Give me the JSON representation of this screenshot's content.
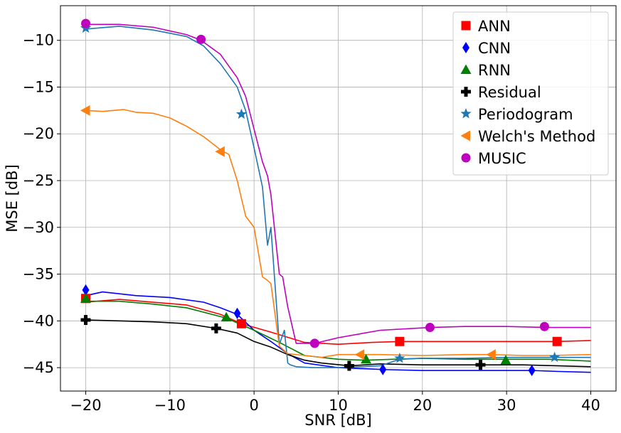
{
  "chart_data": {
    "type": "line",
    "xlabel": "SNR [dB]",
    "ylabel": "MSE [dB]",
    "xlim": [
      -23,
      43
    ],
    "ylim": [
      -47.5,
      -6.3
    ],
    "xticks": [
      -20,
      -10,
      0,
      10,
      20,
      30,
      40
    ],
    "yticks": [
      -45,
      -40,
      -35,
      -30,
      -25,
      -20,
      -15,
      -10
    ],
    "xtick_labels": [
      "−20",
      "−10",
      "0",
      "10",
      "20",
      "30",
      "40"
    ],
    "ytick_labels": [
      "−45",
      "−40",
      "−35",
      "−30",
      "−25",
      "−20",
      "−15",
      "−10"
    ],
    "grid": true,
    "legend_position": "top-right",
    "series": [
      {
        "name": "ANN",
        "color": "#ff0000",
        "marker": "square",
        "x": [
          -20,
          -16,
          -12,
          -8,
          -4,
          -1.5,
          2,
          6,
          10,
          14,
          17.3,
          22,
          26,
          30,
          36,
          40
        ],
        "y": [
          -38.0,
          -37.7,
          -38.0,
          -38.3,
          -39.3,
          -40.3,
          -41.2,
          -42.3,
          -42.5,
          -42.3,
          -42.2,
          -42.2,
          -42.2,
          -42.2,
          -42.2,
          -42.1
        ],
        "markers_x": [
          -20,
          -1.5,
          17.3,
          36
        ],
        "markers_y": [
          -37.6,
          -40.3,
          -42.2,
          -42.2
        ]
      },
      {
        "name": "CNN",
        "color": "#0000ff",
        "marker": "thin_diamond",
        "x": [
          -20,
          -18,
          -16,
          -14,
          -10,
          -6,
          -4,
          -2,
          0,
          2,
          4,
          6,
          10,
          15.3,
          20,
          25,
          30,
          33,
          36,
          40
        ],
        "y": [
          -37.3,
          -36.9,
          -37.1,
          -37.3,
          -37.5,
          -38.0,
          -38.6,
          -39.3,
          -41.0,
          -42.2,
          -43.5,
          -44.5,
          -45.0,
          -45.2,
          -45.3,
          -45.3,
          -45.3,
          -45.3,
          -45.4,
          -45.5
        ],
        "markers_x": [
          -20,
          -2,
          15.3,
          33
        ],
        "markers_y": [
          -36.7,
          -39.2,
          -45.2,
          -45.3
        ]
      },
      {
        "name": "RNN",
        "color": "#008000",
        "marker": "triangle_up",
        "x": [
          -20,
          -16,
          -12,
          -8,
          -3.3,
          0,
          3,
          6,
          10,
          13.3,
          20,
          25,
          29.9,
          35,
          40
        ],
        "y": [
          -37.9,
          -37.9,
          -38.2,
          -38.6,
          -39.7,
          -41.0,
          -42.3,
          -43.7,
          -44.1,
          -44.2,
          -44.0,
          -44.1,
          -44.1,
          -44.1,
          -44.3
        ],
        "markers_x": [
          -20,
          -3.3,
          13.3,
          29.9
        ],
        "markers_y": [
          -37.6,
          -39.6,
          -44.1,
          -44.2
        ]
      },
      {
        "name": "Residual",
        "color": "#000000",
        "marker": "plus_filled",
        "x": [
          -20,
          -16,
          -12,
          -8,
          -4.5,
          -2,
          0,
          2,
          4,
          6,
          8,
          11.3,
          15,
          20,
          26.9,
          32,
          36,
          40
        ],
        "y": [
          -39.9,
          -40.0,
          -40.1,
          -40.3,
          -40.8,
          -41.3,
          -42.2,
          -42.8,
          -43.6,
          -44.2,
          -44.5,
          -44.8,
          -44.6,
          -44.7,
          -44.7,
          -44.7,
          -44.8,
          -44.9
        ],
        "markers_x": [
          -20,
          -4.5,
          11.3,
          26.9
        ],
        "markers_y": [
          -39.9,
          -40.8,
          -44.8,
          -44.7
        ]
      },
      {
        "name": "Periodogram",
        "color": "#1f77b4",
        "marker": "star",
        "x": [
          -20,
          -16,
          -12,
          -8,
          -6,
          -4,
          -2,
          -1,
          0,
          1,
          1.6,
          2,
          3,
          3.6,
          4,
          4.3,
          5,
          7,
          10,
          15,
          17.3,
          20,
          25,
          30,
          35.7,
          40
        ],
        "y": [
          -8.8,
          -8.5,
          -8.9,
          -9.6,
          -10.6,
          -12.5,
          -15.0,
          -17.5,
          -21.5,
          -25.7,
          -31.9,
          -30.0,
          -42.5,
          -41.0,
          -44.5,
          -44.7,
          -44.9,
          -45.0,
          -45.0,
          -44.8,
          -44.1,
          -44.0,
          -44.0,
          -43.9,
          -43.9,
          -43.9
        ],
        "markers_x": [
          -20,
          -1.5,
          17.3,
          35.7
        ],
        "markers_y": [
          -8.7,
          -17.9,
          -44.0,
          -43.9
        ]
      },
      {
        "name": "Welch's Method",
        "color": "#ff7f0e",
        "marker": "triangle_left",
        "x": [
          -20,
          -18,
          -15.5,
          -14,
          -12,
          -10,
          -8,
          -6,
          -4,
          -3,
          -2,
          -1,
          0,
          1,
          1.5,
          2,
          3,
          4,
          6,
          8,
          10,
          12.6,
          15,
          20,
          25,
          28.2,
          32,
          35,
          40
        ],
        "y": [
          -17.5,
          -17.6,
          -17.4,
          -17.7,
          -17.8,
          -18.3,
          -19.2,
          -20.3,
          -21.7,
          -22.2,
          -25.0,
          -28.8,
          -30.0,
          -35.3,
          -35.6,
          -36.0,
          -42.7,
          -43.5,
          -43.7,
          -43.9,
          -43.6,
          -43.6,
          -43.6,
          -43.7,
          -43.6,
          -43.6,
          -43.7,
          -43.7,
          -43.6
        ],
        "markers_x": [
          -20,
          -4,
          12.6,
          28.2
        ],
        "markers_y": [
          -17.5,
          -21.9,
          -43.6,
          -43.6
        ]
      },
      {
        "name": "MUSIC",
        "color": "#bf00bf",
        "marker": "circle",
        "x": [
          -20,
          -16,
          -12,
          -8,
          -6.3,
          -4,
          -2,
          -1,
          0,
          1,
          1.6,
          2,
          3,
          3.4,
          4,
          5,
          7.2,
          10,
          15,
          20.9,
          25,
          30,
          34.5,
          40
        ],
        "y": [
          -8.3,
          -8.3,
          -8.6,
          -9.4,
          -10.0,
          -11.5,
          -14.0,
          -16.0,
          -19.5,
          -23.0,
          -24.5,
          -26.5,
          -35.0,
          -35.3,
          -38.5,
          -42.4,
          -42.4,
          -41.8,
          -41.0,
          -40.7,
          -40.6,
          -40.6,
          -40.7,
          -40.7
        ],
        "markers_x": [
          -20,
          -6.3,
          7.2,
          20.9,
          34.5
        ],
        "markers_y": [
          -8.2,
          -9.9,
          -42.4,
          -40.7,
          -40.6
        ]
      }
    ]
  }
}
